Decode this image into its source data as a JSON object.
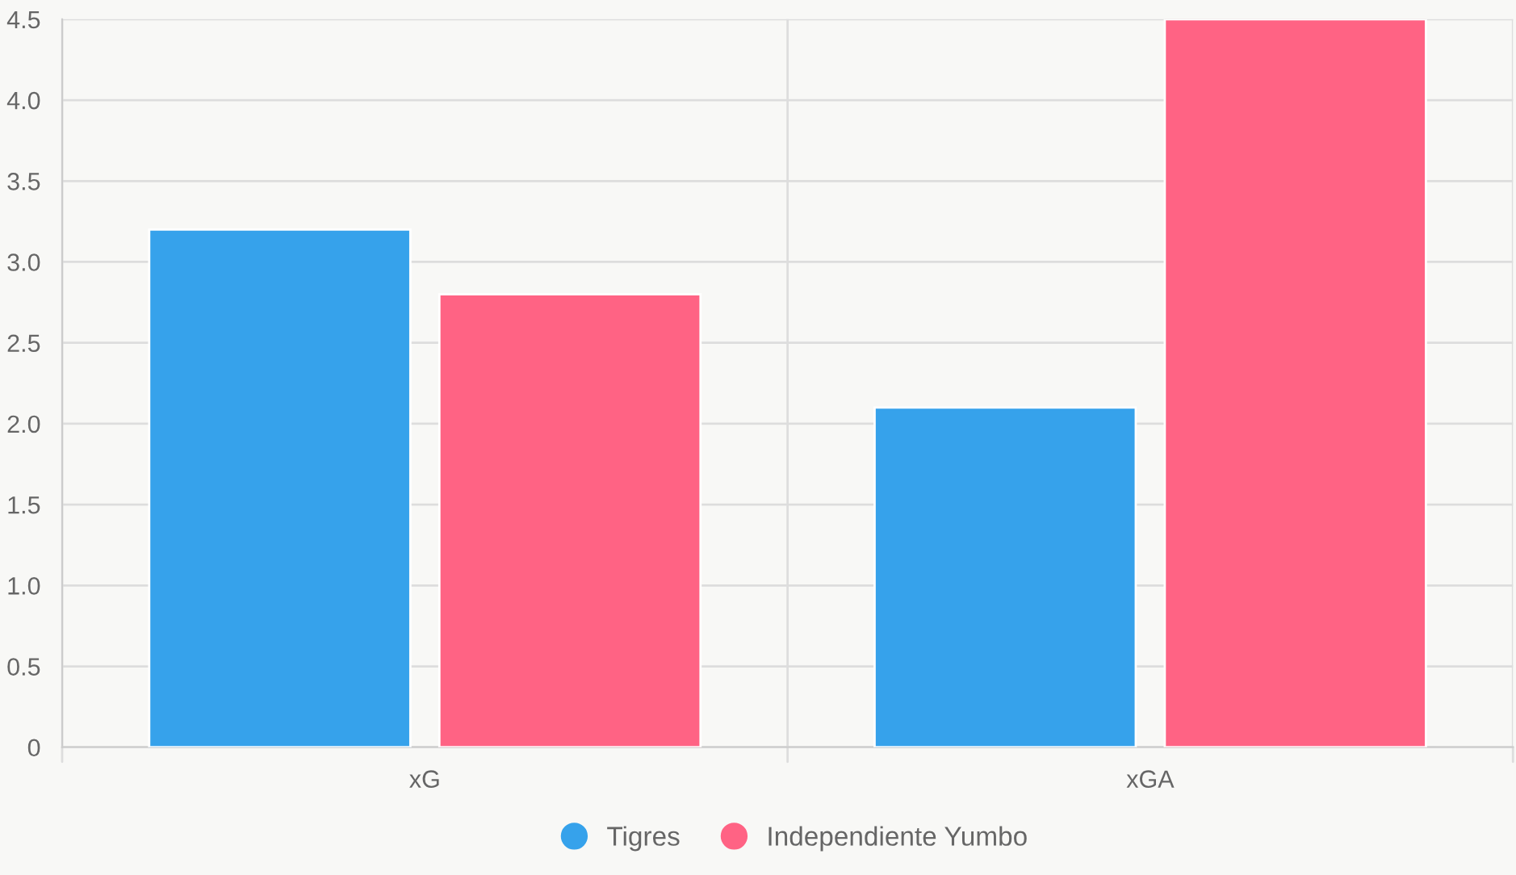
{
  "chart_data": {
    "type": "bar",
    "categories": [
      "xG",
      "xGA"
    ],
    "series": [
      {
        "name": "Tigres",
        "color": "#36a2eb",
        "values": [
          3.2,
          2.1
        ]
      },
      {
        "name": "Independiente Yumbo",
        "color": "#ff6384",
        "values": [
          2.8,
          4.5
        ]
      }
    ],
    "ylim": [
      0,
      4.5
    ],
    "yticks": [
      0,
      0.5,
      {
        "value": 1,
        "label": "1.0"
      },
      1.5,
      {
        "value": 2,
        "label": "2.0"
      },
      2.5,
      {
        "value": 3,
        "label": "3.0"
      },
      3.5,
      {
        "value": 4,
        "label": "4.0"
      },
      4.5
    ],
    "grid": true,
    "legend": "bottom"
  }
}
